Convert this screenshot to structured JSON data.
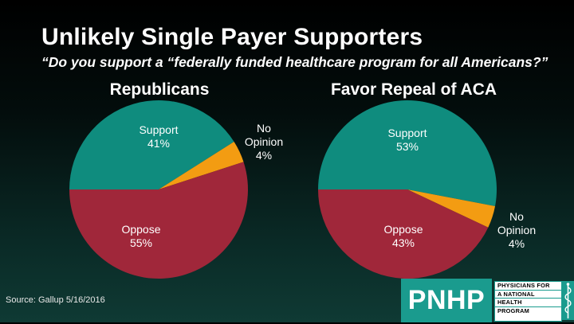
{
  "title": "Unlikely Single Payer Supporters",
  "subtitle": "“Do you support a “federally funded healthcare program for all Americans?”",
  "source": "Source: Gallup 5/16/2016",
  "logo": {
    "letters": "PNHP",
    "lines": [
      "PHYSICIANS FOR",
      "A NATIONAL",
      "HEALTH",
      "PROGRAM"
    ]
  },
  "colors": {
    "support": "#0f8c7e",
    "no_opinion": "#f39c12",
    "oppose": "#a0273a",
    "logo_teal": "#1a9b8e"
  },
  "chart_data": [
    {
      "type": "pie",
      "title": "Republicans",
      "slices": [
        {
          "label": "Support",
          "value": 41,
          "display": "41%"
        },
        {
          "label": "No Opinion",
          "value": 4,
          "display": "4%"
        },
        {
          "label": "Oppose",
          "value": 55,
          "display": "55%"
        }
      ]
    },
    {
      "type": "pie",
      "title": "Favor Repeal of ACA",
      "slices": [
        {
          "label": "Support",
          "value": 53,
          "display": "53%"
        },
        {
          "label": "No Opinion",
          "value": 4,
          "display": "4%"
        },
        {
          "label": "Oppose",
          "value": 43,
          "display": "43%"
        }
      ]
    }
  ]
}
